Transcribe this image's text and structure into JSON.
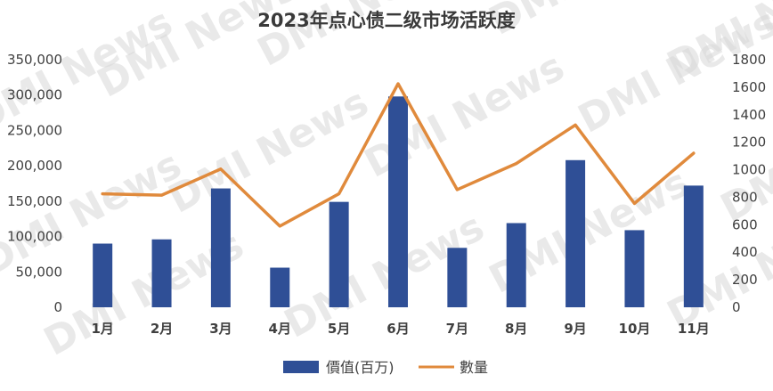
{
  "chart_data": {
    "type": "bar",
    "title": "2023年点心债二级市场活跃度",
    "categories": [
      "1月",
      "2月",
      "3月",
      "4月",
      "5月",
      "6月",
      "7月",
      "8月",
      "9月",
      "10月",
      "11月"
    ],
    "series": [
      {
        "name": "價值(百万)",
        "type": "bar",
        "axis": "left",
        "color": "#2f4f96",
        "values": [
          90000,
          96000,
          168000,
          56000,
          149000,
          298000,
          84000,
          119000,
          208000,
          109000,
          172000
        ]
      },
      {
        "name": "數量",
        "type": "line",
        "axis": "right",
        "color": "#e08a3c",
        "values": [
          825,
          815,
          1005,
          590,
          825,
          1625,
          855,
          1045,
          1325,
          755,
          1120
        ]
      }
    ],
    "y_left": {
      "min": 0,
      "max": 350000,
      "step": 50000
    },
    "y_right": {
      "min": 0,
      "max": 1800,
      "step": 200
    },
    "legend": {
      "position": "bottom"
    },
    "grid": false
  },
  "watermark_text": "DMI News"
}
